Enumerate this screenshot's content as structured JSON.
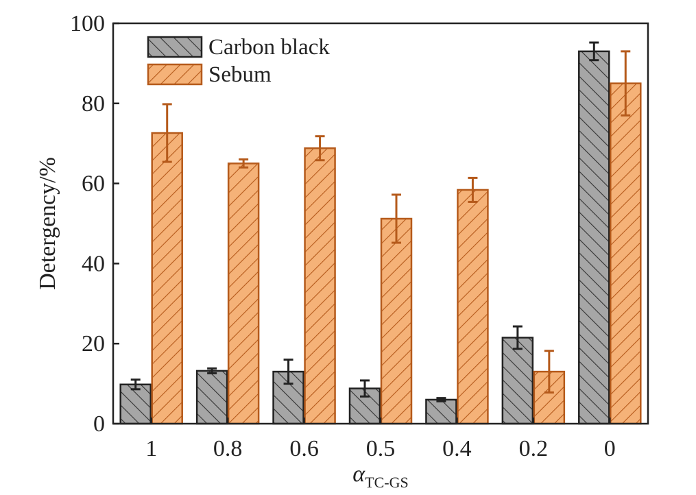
{
  "chart_data": {
    "type": "bar",
    "xlabel": "α",
    "xlabel_sub": "TC-GS",
    "ylabel": "Detergency/%",
    "ylim": [
      0,
      100
    ],
    "yticks": [
      0,
      20,
      40,
      60,
      80,
      100
    ],
    "categories": [
      "1",
      "0.8",
      "0.6",
      "0.5",
      "0.4",
      "0.2",
      "0"
    ],
    "series": [
      {
        "name": "Carbon black",
        "values": [
          9.8,
          13.2,
          13.0,
          8.8,
          6.0,
          21.5,
          93.0
        ],
        "errors": [
          1.2,
          0.6,
          3.0,
          2.0,
          0.4,
          2.8,
          2.2
        ],
        "fill": "#a6a6a6",
        "hatch": "#333333",
        "edge": "#222222",
        "error_color": "#222222",
        "hatch_direction": "backslash"
      },
      {
        "name": "Sebum",
        "values": [
          72.6,
          65.0,
          68.8,
          51.2,
          58.4,
          13.0,
          85.0
        ],
        "errors": [
          7.2,
          1.0,
          3.0,
          6.0,
          3.0,
          5.2,
          8.0
        ],
        "fill": "#f5b278",
        "hatch": "#b55a1b",
        "edge": "#b55a1b",
        "error_color": "#b55a1b",
        "hatch_direction": "slash"
      }
    ],
    "legend": "top-left"
  }
}
